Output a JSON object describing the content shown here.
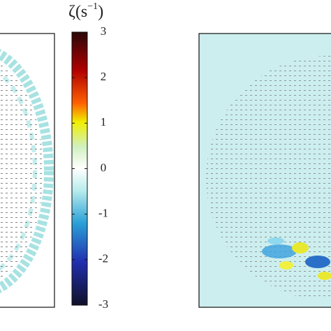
{
  "colorbar": {
    "label": {
      "symbol": "ζ(s",
      "exponent": "−1",
      "close": ")"
    },
    "lim": [
      -3,
      3
    ],
    "ticks": [
      3,
      2,
      1,
      0,
      -1,
      -2,
      -3
    ]
  }
}
